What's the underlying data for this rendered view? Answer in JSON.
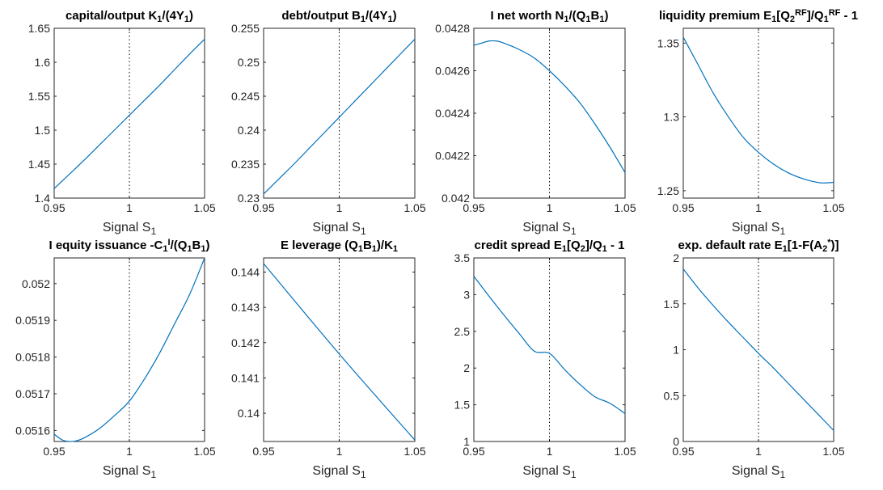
{
  "chart_data": [
    {
      "type": "line",
      "title": {
        "main": "capital/output K",
        "parts": [
          {
            "t": "capital/output K"
          },
          {
            "t": "1",
            "s": "sub"
          },
          {
            "t": "/(4Y"
          },
          {
            "t": "1",
            "s": "sub"
          },
          {
            "t": ")"
          }
        ]
      },
      "xlabel": {
        "main": "Signal S",
        "sub": "1"
      },
      "xlim": [
        0.95,
        1.05
      ],
      "ylim": [
        1.4,
        1.65
      ],
      "xticks": [
        0.95,
        1,
        1.05
      ],
      "xtick_labels": [
        "0.95",
        "1",
        "1.05"
      ],
      "yticks": [
        1.4,
        1.45,
        1.5,
        1.55,
        1.6,
        1.65
      ],
      "ytick_labels": [
        "1.4",
        "1.45",
        "1.5",
        "1.55",
        "1.6",
        "1.65"
      ],
      "ref_x": 1,
      "x": [
        0.95,
        0.96,
        0.97,
        0.98,
        0.99,
        1.0,
        1.01,
        1.02,
        1.03,
        1.04,
        1.05
      ],
      "y": [
        1.414,
        1.435,
        1.456,
        1.478,
        1.5,
        1.522,
        1.544,
        1.566,
        1.589,
        1.612,
        1.634
      ]
    },
    {
      "type": "line",
      "title": {
        "main": "debt/output B",
        "parts": [
          {
            "t": "debt/output B"
          },
          {
            "t": "1",
            "s": "sub"
          },
          {
            "t": "/(4Y"
          },
          {
            "t": "1",
            "s": "sub"
          },
          {
            "t": ")"
          }
        ]
      },
      "xlabel": {
        "main": "Signal S",
        "sub": "1"
      },
      "xlim": [
        0.95,
        1.05
      ],
      "ylim": [
        0.23,
        0.255
      ],
      "xticks": [
        0.95,
        1,
        1.05
      ],
      "xtick_labels": [
        "0.95",
        "1",
        "1.05"
      ],
      "yticks": [
        0.23,
        0.235,
        0.24,
        0.245,
        0.25,
        0.255
      ],
      "ytick_labels": [
        "0.23",
        "0.235",
        "0.24",
        "0.245",
        "0.25",
        "0.255"
      ],
      "ref_x": 1,
      "x": [
        0.95,
        0.96,
        0.97,
        0.98,
        0.99,
        1.0,
        1.01,
        1.02,
        1.03,
        1.04,
        1.05
      ],
      "y": [
        0.2306,
        0.2328,
        0.235,
        0.2373,
        0.2396,
        0.2419,
        0.2442,
        0.2465,
        0.2488,
        0.2511,
        0.2534
      ]
    },
    {
      "type": "line",
      "title": {
        "main": "I net worth N",
        "parts": [
          {
            "t": "I net worth N"
          },
          {
            "t": "1",
            "s": "sub"
          },
          {
            "t": "/(Q"
          },
          {
            "t": "1",
            "s": "sub"
          },
          {
            "t": "B"
          },
          {
            "t": "1",
            "s": "sub"
          },
          {
            "t": ")"
          }
        ]
      },
      "xlabel": {
        "main": "Signal S",
        "sub": "1"
      },
      "xlim": [
        0.95,
        1.05
      ],
      "ylim": [
        0.042,
        0.0428
      ],
      "xticks": [
        0.95,
        1,
        1.05
      ],
      "xtick_labels": [
        "0.95",
        "1",
        "1.05"
      ],
      "yticks": [
        0.042,
        0.0422,
        0.0424,
        0.0426,
        0.0428
      ],
      "ytick_labels": [
        "0.042",
        "0.0422",
        "0.0424",
        "0.0426",
        "0.0428"
      ],
      "ref_x": 1,
      "x": [
        0.95,
        0.955,
        0.96,
        0.965,
        0.97,
        0.98,
        0.99,
        1.0,
        1.01,
        1.02,
        1.03,
        1.04,
        1.05
      ],
      "y": [
        0.04272,
        0.04273,
        0.04274,
        0.04274,
        0.04273,
        0.0427,
        0.04266,
        0.0426,
        0.04253,
        0.04245,
        0.04235,
        0.04224,
        0.04212
      ]
    },
    {
      "type": "line",
      "title": {
        "main": "liquidity premium E",
        "parts": [
          {
            "t": "liquidity premium E"
          },
          {
            "t": "1",
            "s": "sub"
          },
          {
            "t": "[Q"
          },
          {
            "t": "2",
            "s": "sub"
          },
          {
            "t": "RF",
            "s": "sup"
          },
          {
            "t": "]/Q"
          },
          {
            "t": "1",
            "s": "sub"
          },
          {
            "t": "RF",
            "s": "sup"
          },
          {
            "t": " - 1"
          }
        ]
      },
      "xlabel": {
        "main": "Signal S",
        "sub": "1"
      },
      "xlim": [
        0.95,
        1.05
      ],
      "ylim": [
        1.245,
        1.36
      ],
      "xticks": [
        0.95,
        1,
        1.05
      ],
      "xtick_labels": [
        "0.95",
        "1",
        "1.05"
      ],
      "yticks": [
        1.25,
        1.3,
        1.35
      ],
      "ytick_labels": [
        "1.25",
        "1.3",
        "1.35"
      ],
      "ref_x": 1,
      "x": [
        0.95,
        0.96,
        0.97,
        0.98,
        0.99,
        1.0,
        1.01,
        1.02,
        1.03,
        1.04,
        1.045,
        1.05
      ],
      "y": [
        1.354,
        1.335,
        1.316,
        1.3,
        1.286,
        1.276,
        1.268,
        1.262,
        1.258,
        1.2555,
        1.2553,
        1.2557
      ]
    },
    {
      "type": "line",
      "title": {
        "main": "I equity issuance -C",
        "parts": [
          {
            "t": "I equity issuance -C"
          },
          {
            "t": "1",
            "s": "sub"
          },
          {
            "t": "I",
            "s": "sup"
          },
          {
            "t": "/(Q"
          },
          {
            "t": "1",
            "s": "sub"
          },
          {
            "t": "B"
          },
          {
            "t": "1",
            "s": "sub"
          },
          {
            "t": ")"
          }
        ]
      },
      "xlabel": {
        "main": "Signal S",
        "sub": "1"
      },
      "xlim": [
        0.95,
        1.05
      ],
      "ylim": [
        0.05157,
        0.05207
      ],
      "xticks": [
        0.95,
        1,
        1.05
      ],
      "xtick_labels": [
        "0.95",
        "1",
        "1.05"
      ],
      "yticks": [
        0.0516,
        0.0517,
        0.0518,
        0.0519,
        0.052
      ],
      "ytick_labels": [
        "0.0516",
        "0.0517",
        "0.0518",
        "0.0519",
        "0.052"
      ],
      "ref_x": 1,
      "x": [
        0.95,
        0.955,
        0.96,
        0.965,
        0.97,
        0.98,
        0.99,
        1.0,
        1.01,
        1.02,
        1.03,
        1.04,
        1.05
      ],
      "y": [
        0.05159,
        0.051575,
        0.05157,
        0.051572,
        0.05158,
        0.051605,
        0.05164,
        0.05168,
        0.05174,
        0.05181,
        0.05189,
        0.05197,
        0.05207
      ]
    },
    {
      "type": "line",
      "title": {
        "main": "E leverage (Q",
        "parts": [
          {
            "t": "E leverage (Q"
          },
          {
            "t": "1",
            "s": "sub"
          },
          {
            "t": "B"
          },
          {
            "t": "1",
            "s": "sub"
          },
          {
            "t": ")/K"
          },
          {
            "t": "1",
            "s": "sub"
          }
        ]
      },
      "xlabel": {
        "main": "Signal S",
        "sub": "1"
      },
      "xlim": [
        0.95,
        1.05
      ],
      "ylim": [
        0.1392,
        0.1444
      ],
      "xticks": [
        0.95,
        1,
        1.05
      ],
      "xtick_labels": [
        "0.95",
        "1",
        "1.05"
      ],
      "yticks": [
        0.14,
        0.141,
        0.142,
        0.143,
        0.144
      ],
      "ytick_labels": [
        "0.14",
        "0.141",
        "0.142",
        "0.143",
        "0.144"
      ],
      "ref_x": 1,
      "x": [
        0.95,
        1.0,
        1.05
      ],
      "y": [
        0.14424,
        0.14168,
        0.13924
      ]
    },
    {
      "type": "line",
      "title": {
        "main": "credit spread E",
        "parts": [
          {
            "t": "credit spread E"
          },
          {
            "t": "1",
            "s": "sub"
          },
          {
            "t": "[Q"
          },
          {
            "t": "2",
            "s": "sub"
          },
          {
            "t": "]/Q"
          },
          {
            "t": "1",
            "s": "sub"
          },
          {
            "t": " - 1"
          }
        ]
      },
      "xlabel": {
        "main": "Signal S",
        "sub": "1"
      },
      "xlim": [
        0.95,
        1.05
      ],
      "ylim": [
        1,
        3.5
      ],
      "xticks": [
        0.95,
        1,
        1.05
      ],
      "xtick_labels": [
        "0.95",
        "1",
        "1.05"
      ],
      "yticks": [
        1,
        1.5,
        2,
        2.5,
        3,
        3.5
      ],
      "ytick_labels": [
        "1",
        "1.5",
        "2",
        "2.5",
        "3",
        "3.5"
      ],
      "ref_x": 1,
      "x": [
        0.95,
        0.96,
        0.97,
        0.98,
        0.99,
        1.0,
        1.01,
        1.02,
        1.03,
        1.04,
        1.05
      ],
      "y": [
        3.25,
        2.98,
        2.72,
        2.47,
        2.23,
        2.2,
        1.98,
        1.78,
        1.61,
        1.52,
        1.38
      ]
    },
    {
      "type": "line",
      "title": {
        "main": "exp. default rate E",
        "parts": [
          {
            "t": "exp. default rate E"
          },
          {
            "t": "1",
            "s": "sub"
          },
          {
            "t": "[1-F(A"
          },
          {
            "t": "2",
            "s": "sub"
          },
          {
            "t": "*",
            "s": "sup"
          },
          {
            "t": ")]"
          }
        ]
      },
      "xlabel": {
        "main": "Signal S",
        "sub": "1"
      },
      "xlim": [
        0.95,
        1.05
      ],
      "ylim": [
        0,
        2
      ],
      "xticks": [
        0.95,
        1,
        1.05
      ],
      "xtick_labels": [
        "0.95",
        "1",
        "1.05"
      ],
      "yticks": [
        0,
        0.5,
        1,
        1.5,
        2
      ],
      "ytick_labels": [
        "0",
        "0.5",
        "1",
        "1.5",
        "2"
      ],
      "ref_x": 1,
      "x": [
        0.95,
        0.96,
        0.97,
        0.98,
        0.99,
        1.0,
        1.01,
        1.02,
        1.03,
        1.04,
        1.05
      ],
      "y": [
        1.88,
        1.67,
        1.48,
        1.3,
        1.13,
        0.96,
        0.8,
        0.63,
        0.46,
        0.29,
        0.12
      ]
    }
  ]
}
